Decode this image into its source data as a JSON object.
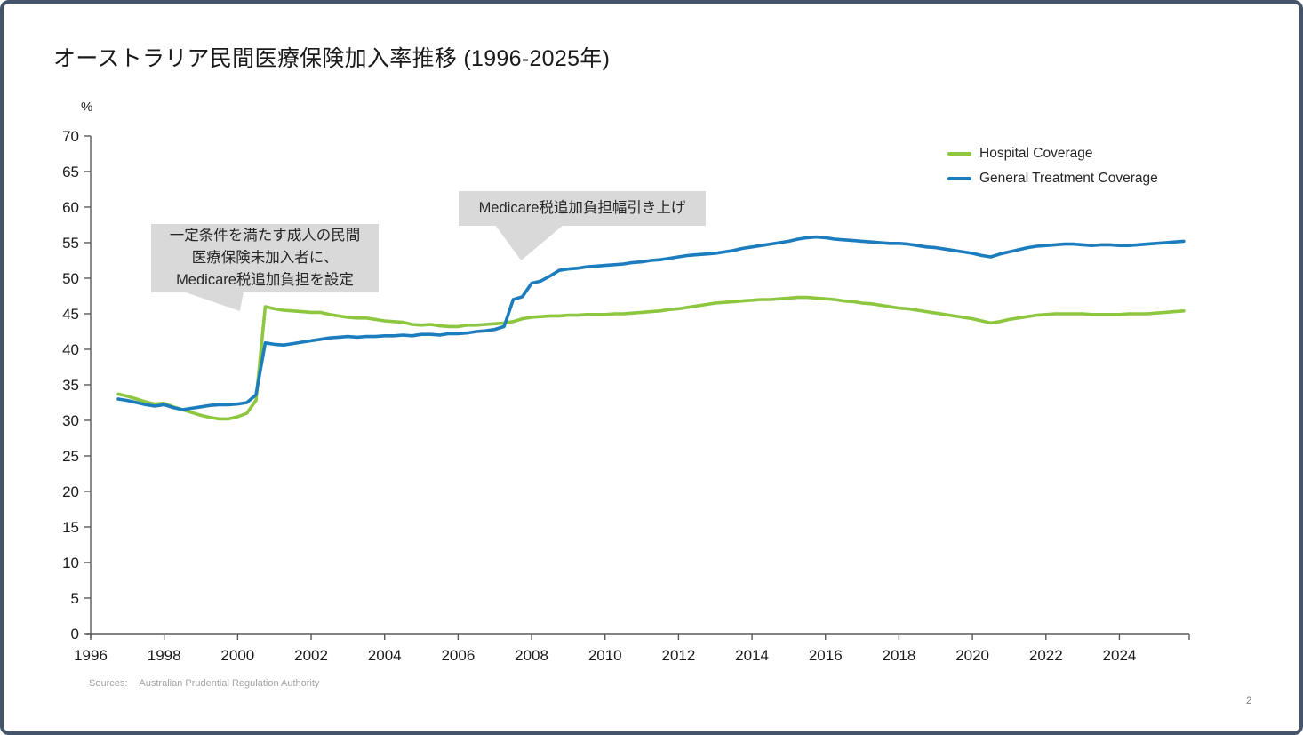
{
  "page": {
    "title": "オーストラリア民間医療保険加入率推移 (1996-2025年)",
    "page_number": "2",
    "source_label": "Sources:",
    "source_text": "Australian Prudential Regulation Authority"
  },
  "colors": {
    "frame_border": "#44546a",
    "hospital_green": "#8dc63f",
    "general_blue": "#1b7cbe",
    "callout_bg": "#d9d9d9",
    "axis": "#595959"
  },
  "chart_data": {
    "type": "line",
    "title": "オーストラリア民間医療保険加入率推移 (1996-2025年)",
    "xlabel": "",
    "ylabel": "%",
    "x_unit": "year (quarterly data points)",
    "xlim": [
      1996,
      2025.9
    ],
    "ylim": [
      0,
      70
    ],
    "x_ticks": [
      1996,
      1998,
      2000,
      2002,
      2004,
      2006,
      2008,
      2010,
      2012,
      2014,
      2016,
      2018,
      2020,
      2022,
      2024
    ],
    "y_ticks": [
      0,
      5,
      10,
      15,
      20,
      25,
      30,
      35,
      40,
      45,
      50,
      55,
      60,
      65,
      70
    ],
    "grid": false,
    "legend_position": "top-right",
    "annotations": [
      {
        "lines": [
          "一定条件を満たす成人の民間",
          "医療保険未加入者に、",
          "Medicare税追加負担を設定"
        ],
        "points_at_year": 2000.6
      },
      {
        "lines": [
          "Medicare税追加負担幅引き上げ"
        ],
        "points_at_year": 2007.6
      }
    ],
    "series": [
      {
        "name": "Hospital Coverage",
        "color": "#8dc63f",
        "x_start": 1996.75,
        "x_step": 0.25,
        "values": [
          33.7,
          33.4,
          33.0,
          32.6,
          32.3,
          32.4,
          31.9,
          31.5,
          31.1,
          30.7,
          30.4,
          30.2,
          30.2,
          30.5,
          31.0,
          32.8,
          46.0,
          45.7,
          45.5,
          45.4,
          45.3,
          45.2,
          45.2,
          44.9,
          44.7,
          44.5,
          44.4,
          44.4,
          44.2,
          44.0,
          43.9,
          43.8,
          43.5,
          43.4,
          43.5,
          43.3,
          43.2,
          43.2,
          43.4,
          43.4,
          43.5,
          43.6,
          43.7,
          43.9,
          44.3,
          44.5,
          44.6,
          44.7,
          44.7,
          44.8,
          44.8,
          44.9,
          44.9,
          44.9,
          45.0,
          45.0,
          45.1,
          45.2,
          45.3,
          45.4,
          45.6,
          45.7,
          45.9,
          46.1,
          46.3,
          46.5,
          46.6,
          46.7,
          46.8,
          46.9,
          47.0,
          47.0,
          47.1,
          47.2,
          47.3,
          47.3,
          47.2,
          47.1,
          47.0,
          46.8,
          46.7,
          46.5,
          46.4,
          46.2,
          46.0,
          45.8,
          45.7,
          45.5,
          45.3,
          45.1,
          44.9,
          44.7,
          44.5,
          44.3,
          44.0,
          43.7,
          43.9,
          44.2,
          44.4,
          44.6,
          44.8,
          44.9,
          45.0,
          45.0,
          45.0,
          45.0,
          44.9,
          44.9,
          44.9,
          44.9,
          45.0,
          45.0,
          45.0,
          45.1,
          45.2,
          45.3,
          45.4
        ]
      },
      {
        "name": "General Treatment Coverage",
        "color": "#1b7cbe",
        "x_start": 1996.75,
        "x_step": 0.25,
        "values": [
          33.0,
          32.8,
          32.5,
          32.2,
          32.0,
          32.2,
          31.8,
          31.5,
          31.7,
          31.9,
          32.1,
          32.2,
          32.2,
          32.3,
          32.5,
          33.6,
          40.9,
          40.7,
          40.6,
          40.8,
          41.0,
          41.2,
          41.4,
          41.6,
          41.7,
          41.8,
          41.7,
          41.8,
          41.8,
          41.9,
          41.9,
          42.0,
          41.9,
          42.1,
          42.1,
          42.0,
          42.2,
          42.2,
          42.3,
          42.5,
          42.6,
          42.8,
          43.2,
          47.0,
          47.4,
          49.3,
          49.6,
          50.3,
          51.1,
          51.3,
          51.4,
          51.6,
          51.7,
          51.8,
          51.9,
          52.0,
          52.2,
          52.3,
          52.5,
          52.6,
          52.8,
          53.0,
          53.2,
          53.3,
          53.4,
          53.5,
          53.7,
          53.9,
          54.2,
          54.4,
          54.6,
          54.8,
          55.0,
          55.2,
          55.5,
          55.7,
          55.8,
          55.7,
          55.5,
          55.4,
          55.3,
          55.2,
          55.1,
          55.0,
          54.9,
          54.9,
          54.8,
          54.6,
          54.4,
          54.3,
          54.1,
          53.9,
          53.7,
          53.5,
          53.2,
          53.0,
          53.4,
          53.7,
          54.0,
          54.3,
          54.5,
          54.6,
          54.7,
          54.8,
          54.8,
          54.7,
          54.6,
          54.7,
          54.7,
          54.6,
          54.6,
          54.7,
          54.8,
          54.9,
          55.0,
          55.1,
          55.2
        ]
      }
    ]
  }
}
